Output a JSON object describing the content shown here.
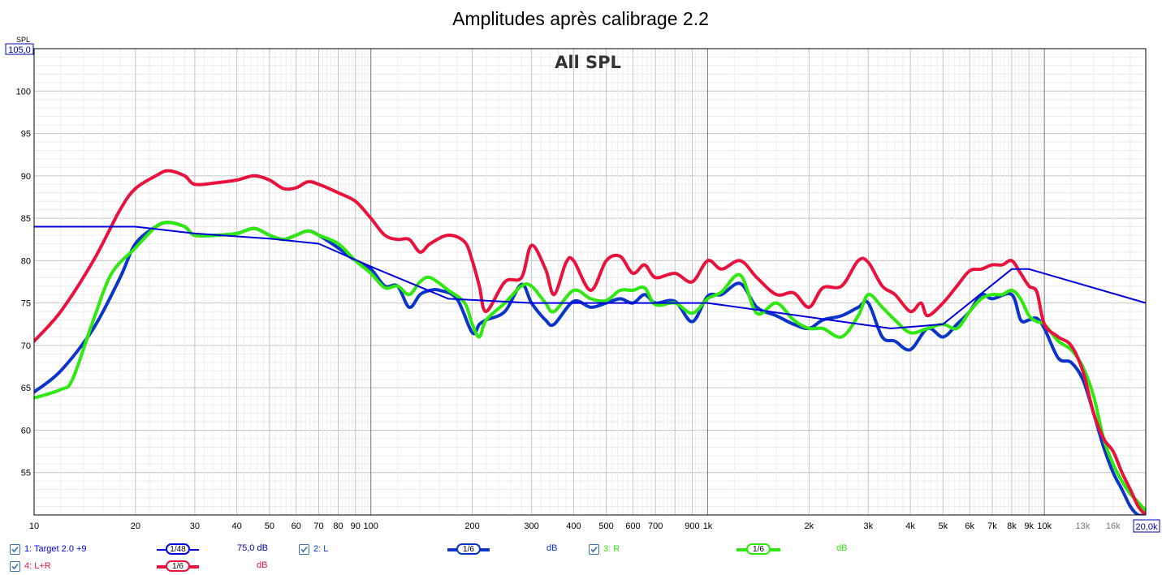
{
  "chart_data": {
    "type": "line",
    "title": "Amplitudes après calibrage 2.2",
    "subtitle": "All SPL",
    "ylabel": "SPL",
    "x_scale": "log",
    "xlim": [
      10,
      20000
    ],
    "ylim": [
      50,
      105
    ],
    "y_top_label": "105,0",
    "x_right_label": "20,0k",
    "y_ticks": [
      55,
      60,
      65,
      70,
      75,
      80,
      85,
      90,
      95,
      100
    ],
    "x_tick_labels": [
      {
        "v": 10,
        "t": "10"
      },
      {
        "v": 20,
        "t": "20"
      },
      {
        "v": 30,
        "t": "30"
      },
      {
        "v": 40,
        "t": "40"
      },
      {
        "v": 50,
        "t": "50"
      },
      {
        "v": 60,
        "t": "60"
      },
      {
        "v": 70,
        "t": "70"
      },
      {
        "v": 80,
        "t": "80"
      },
      {
        "v": 90,
        "t": "90"
      },
      {
        "v": 100,
        "t": "100"
      },
      {
        "v": 200,
        "t": "200"
      },
      {
        "v": 300,
        "t": "300"
      },
      {
        "v": 400,
        "t": "400"
      },
      {
        "v": 500,
        "t": "500"
      },
      {
        "v": 600,
        "t": "600"
      },
      {
        "v": 700,
        "t": "700"
      },
      {
        "v": 900,
        "t": "900"
      },
      {
        "v": 1000,
        "t": "1k"
      },
      {
        "v": 2000,
        "t": "2k"
      },
      {
        "v": 3000,
        "t": "3k"
      },
      {
        "v": 4000,
        "t": "4k"
      },
      {
        "v": 5000,
        "t": "5k"
      },
      {
        "v": 6000,
        "t": "6k"
      },
      {
        "v": 7000,
        "t": "7k"
      },
      {
        "v": 8000,
        "t": "8k"
      },
      {
        "v": 9000,
        "t": "9k"
      },
      {
        "v": 10000,
        "t": "10k"
      },
      {
        "v": 13000,
        "t": "13k"
      },
      {
        "v": 16000,
        "t": "16k"
      }
    ],
    "series": [
      {
        "name": "1: Target 2.0 +9",
        "color": "#0000dd",
        "width": 2,
        "x": [
          10,
          20,
          30,
          50,
          70,
          100,
          170,
          300,
          1000,
          3500,
          5000,
          8000,
          9000,
          20000
        ],
        "y": [
          84,
          84,
          83.2,
          82.6,
          82,
          79.3,
          75.5,
          75,
          75,
          72,
          72.5,
          79,
          79,
          75
        ]
      },
      {
        "name": "2: L",
        "color": "#0a35c8",
        "width": 4,
        "x": [
          10,
          12,
          15,
          18,
          20,
          23,
          25,
          28,
          30,
          35,
          40,
          45,
          50,
          55,
          60,
          65,
          70,
          80,
          90,
          100,
          110,
          120,
          130,
          140,
          150,
          160,
          180,
          200,
          210,
          220,
          250,
          280,
          300,
          330,
          350,
          400,
          450,
          500,
          550,
          600,
          650,
          700,
          800,
          900,
          1000,
          1100,
          1250,
          1400,
          1600,
          1800,
          2000,
          2200,
          2500,
          2800,
          3000,
          3300,
          3600,
          4000,
          4500,
          5000,
          5500,
          6000,
          6500,
          7000,
          8000,
          8500,
          9000,
          9500,
          10000,
          11000,
          12000,
          13000,
          14000,
          15000,
          16000,
          17000,
          18000,
          19000,
          20000
        ],
        "y": [
          64.5,
          67,
          72,
          78,
          82,
          84,
          84.5,
          84,
          83,
          83,
          83.2,
          83.8,
          83,
          82.5,
          83,
          83.5,
          83,
          81.5,
          80,
          79,
          77,
          77,
          74.5,
          76,
          76.5,
          76.5,
          75.5,
          71.5,
          72.5,
          73,
          74,
          77.2,
          75,
          73,
          72.5,
          75.2,
          74.5,
          75,
          75.5,
          75,
          76,
          75,
          75.2,
          72.8,
          75.8,
          76,
          77.3,
          74.5,
          73.5,
          72.5,
          72,
          73,
          73.5,
          74.5,
          75,
          71,
          70.5,
          69.5,
          72,
          71,
          72.5,
          74,
          76,
          75.5,
          76,
          73,
          73,
          73.2,
          72,
          68.5,
          68,
          66,
          62,
          58,
          55,
          53,
          51,
          50,
          50
        ]
      },
      {
        "name": "3: R",
        "color": "#2ee80e",
        "width": 4,
        "x": [
          10,
          12,
          13,
          15,
          17,
          20,
          23,
          25,
          28,
          30,
          35,
          40,
          45,
          50,
          55,
          60,
          65,
          70,
          80,
          90,
          100,
          110,
          120,
          130,
          140,
          150,
          170,
          190,
          200,
          210,
          220,
          250,
          280,
          300,
          330,
          350,
          400,
          450,
          500,
          550,
          600,
          650,
          700,
          800,
          900,
          1000,
          1100,
          1250,
          1400,
          1600,
          1800,
          2000,
          2200,
          2500,
          2800,
          3000,
          3300,
          3600,
          4000,
          4500,
          5000,
          5500,
          6000,
          6500,
          7000,
          7500,
          8000,
          8500,
          9000,
          9500,
          10000,
          11000,
          12000,
          13000,
          14000,
          15000,
          16000,
          17000,
          18000,
          19000,
          20000
        ],
        "y": [
          63.8,
          64.8,
          66,
          73,
          78.5,
          81.5,
          84,
          84.5,
          84,
          83,
          83,
          83.2,
          83.8,
          83,
          82.5,
          83,
          83.5,
          83,
          82,
          80,
          78.5,
          76.8,
          77,
          76,
          77.5,
          78,
          76.5,
          75,
          72.5,
          71,
          73,
          75,
          77,
          77,
          75,
          74,
          76.5,
          75.5,
          75.3,
          76.5,
          76.5,
          76.8,
          74.8,
          75,
          73.8,
          75.5,
          76.3,
          78.3,
          73.8,
          75,
          73,
          72,
          72,
          71,
          73.5,
          76,
          74.5,
          73,
          71.5,
          72,
          72.5,
          72,
          74,
          75.5,
          76,
          76,
          76.5,
          75.5,
          73.5,
          72.8,
          72.5,
          70.5,
          69.5,
          67.5,
          64,
          59,
          56,
          54,
          52.5,
          51.5,
          50.5
        ]
      },
      {
        "name": "4: L+R",
        "color": "#e8123c",
        "width": 4,
        "x": [
          10,
          12,
          15,
          18,
          20,
          23,
          25,
          28,
          30,
          35,
          40,
          45,
          50,
          55,
          60,
          65,
          70,
          80,
          90,
          100,
          110,
          120,
          130,
          140,
          150,
          170,
          190,
          200,
          210,
          220,
          250,
          280,
          300,
          330,
          350,
          380,
          400,
          450,
          500,
          550,
          600,
          650,
          700,
          800,
          900,
          1000,
          1100,
          1250,
          1400,
          1600,
          1800,
          2000,
          2200,
          2500,
          2800,
          3000,
          3300,
          3600,
          4000,
          4300,
          4500,
          5000,
          5500,
          6000,
          6500,
          7000,
          7500,
          8000,
          8500,
          9000,
          9500,
          10000,
          11000,
          12000,
          13000,
          14000,
          15000,
          16000,
          17000,
          18000,
          19000,
          20000
        ],
        "y": [
          70.5,
          74,
          80,
          86,
          88.5,
          90,
          90.6,
          90,
          89,
          89.2,
          89.5,
          90,
          89.5,
          88.5,
          88.6,
          89.3,
          89,
          88,
          87,
          85,
          83,
          82.5,
          82.5,
          81,
          82,
          83,
          82.2,
          80,
          77,
          74,
          77.5,
          78,
          81.8,
          79,
          76,
          79.8,
          80,
          76.5,
          80,
          80.5,
          78.5,
          79.5,
          78,
          78.5,
          77.5,
          80,
          79,
          80,
          78,
          76,
          76.2,
          74.5,
          76.8,
          77,
          80,
          79.8,
          77,
          76,
          74,
          75,
          73.5,
          75,
          77,
          78.8,
          79,
          79.5,
          79.5,
          80,
          78.5,
          77,
          76.3,
          72.5,
          71,
          70,
          67,
          62,
          59,
          57.5,
          55,
          53,
          51,
          50
        ]
      }
    ]
  },
  "legend": [
    {
      "checked": true,
      "label": "1: Target 2.0 +9",
      "smoothing": "1/48",
      "value": "75,0 dB",
      "color": "#0000dd"
    },
    {
      "checked": true,
      "label": "2: L",
      "smoothing": "1/6",
      "value": "dB",
      "color": "#0a35c8"
    },
    {
      "checked": true,
      "label": "3: R",
      "smoothing": "1/6",
      "value": "dB",
      "color": "#2ee80e"
    },
    {
      "checked": true,
      "label": "4: L+R",
      "smoothing": "1/6",
      "value": "dB",
      "color": "#e8123c"
    }
  ]
}
